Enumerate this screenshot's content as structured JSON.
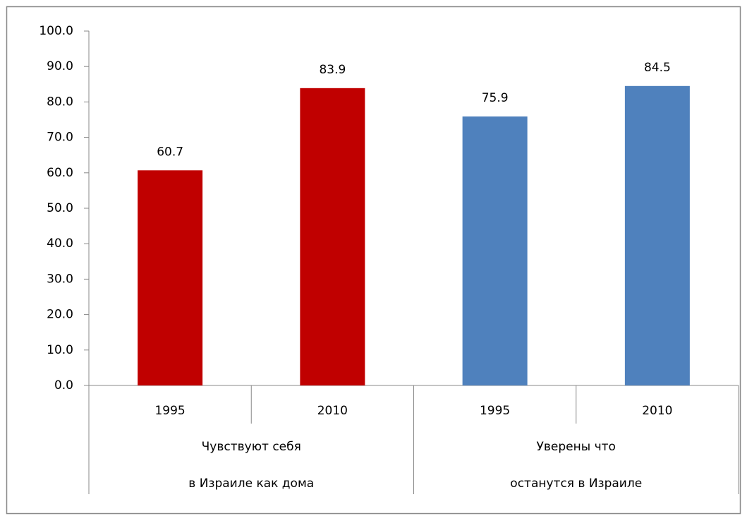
{
  "chart_data": {
    "type": "bar",
    "categories": [
      "1995",
      "2010",
      "1995",
      "2010"
    ],
    "values": [
      60.7,
      83.9,
      75.9,
      84.5
    ],
    "colors": [
      "#c00000",
      "#c00000",
      "#4f81bd",
      "#4f81bd"
    ],
    "groups": [
      {
        "lines": [
          "Чувствуют себя",
          "в Израиле как дома"
        ]
      },
      {
        "lines": [
          "Уверены что",
          "останутся в Израиле"
        ]
      }
    ],
    "ylim": [
      0,
      100
    ],
    "yticks": [
      {
        "value": 0,
        "label": "0.0"
      },
      {
        "value": 10,
        "label": "10.0"
      },
      {
        "value": 20,
        "label": "20.0"
      },
      {
        "value": 30,
        "label": "30.0"
      },
      {
        "value": 40,
        "label": "40.0"
      },
      {
        "value": 50,
        "label": "50.0"
      },
      {
        "value": 60,
        "label": "60.0"
      },
      {
        "value": 70,
        "label": "70.0"
      },
      {
        "value": 80,
        "label": "80.0"
      },
      {
        "value": 90,
        "label": "90.0"
      },
      {
        "value": 100,
        "label": "100.0"
      }
    ]
  }
}
